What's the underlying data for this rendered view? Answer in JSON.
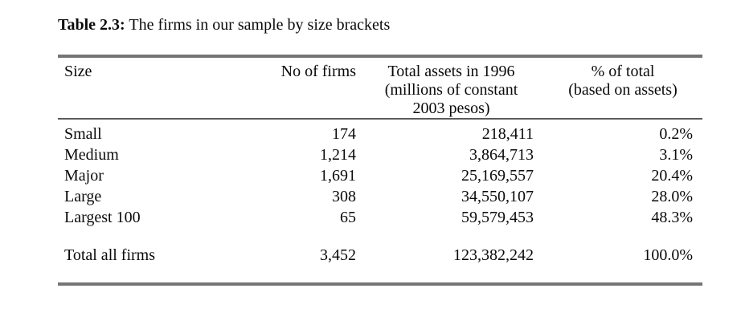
{
  "caption": {
    "label": "Table 2.3:",
    "text": " The firms in our sample by size brackets"
  },
  "table": {
    "headers": {
      "size": "Size",
      "firms": "No of firms",
      "assets_line1": "Total assets in 1996",
      "assets_line2": "(millions of constant",
      "assets_line3": "2003 pesos)",
      "pct_line1": "% of total",
      "pct_line2": "(based on assets)"
    },
    "rows": [
      {
        "size": "Small",
        "firms": "174",
        "assets": "218,411",
        "pct": "0.2%"
      },
      {
        "size": "Medium",
        "firms": "1,214",
        "assets": "3,864,713",
        "pct": "3.1%"
      },
      {
        "size": "Major",
        "firms": "1,691",
        "assets": "25,169,557",
        "pct": "20.4%"
      },
      {
        "size": "Large",
        "firms": "308",
        "assets": "34,550,107",
        "pct": "28.0%"
      },
      {
        "size": "Largest 100",
        "firms": "65",
        "assets": "59,579,453",
        "pct": "48.3%"
      }
    ],
    "total": {
      "size": "Total all firms",
      "firms": "3,452",
      "assets": "123,382,242",
      "pct": "100.0%"
    }
  },
  "colors": {
    "background": "#ffffff",
    "text": "#0a0a0a",
    "rule_gray": "#757575",
    "rule_dark": "#5a5a5a"
  }
}
